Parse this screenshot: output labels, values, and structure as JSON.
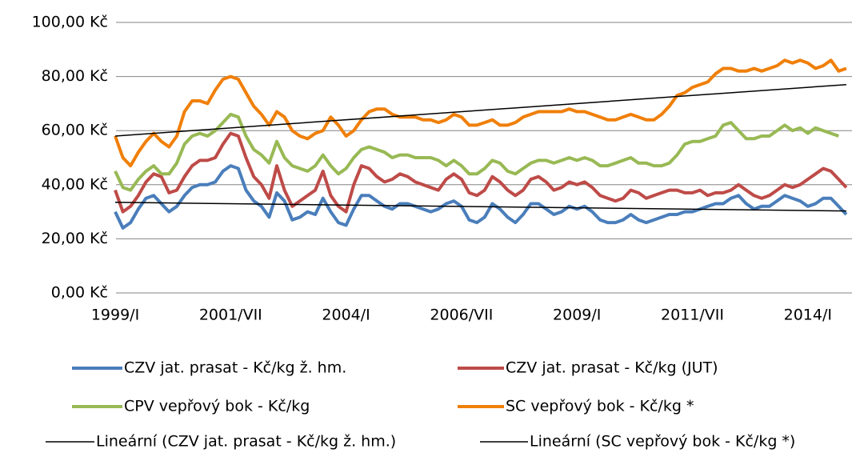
{
  "chart_data": {
    "type": "line",
    "categories": [
      "1999/I",
      null,
      null,
      null,
      null,
      null,
      null,
      null,
      null,
      null,
      null,
      null,
      null,
      null,
      null,
      "2001/VII",
      null,
      null,
      null,
      null,
      null,
      null,
      null,
      null,
      null,
      null,
      null,
      null,
      null,
      null,
      "2004/I",
      null,
      null,
      null,
      null,
      null,
      null,
      null,
      null,
      null,
      null,
      null,
      null,
      null,
      null,
      "2006/VII",
      null,
      null,
      null,
      null,
      null,
      null,
      null,
      null,
      null,
      null,
      null,
      null,
      null,
      null,
      "2009/I",
      null,
      null,
      null,
      null,
      null,
      null,
      null,
      null,
      null,
      null,
      null,
      null,
      null,
      null,
      "2011/VII",
      null,
      null,
      null,
      null,
      null,
      null,
      null,
      null,
      null,
      null,
      null,
      null,
      null,
      null,
      "2014/I",
      null,
      null,
      null,
      null,
      null
    ],
    "ylim": [
      0,
      100
    ],
    "yticks": [
      {
        "value": 0,
        "label": "0,00 Kč"
      },
      {
        "value": 20,
        "label": "20,00 Kč"
      },
      {
        "value": 40,
        "label": "40,00 Kč"
      },
      {
        "value": 60,
        "label": "60,00 Kč"
      },
      {
        "value": 80,
        "label": "80,00 Kč"
      },
      {
        "value": 100,
        "label": "100,00 Kč"
      }
    ],
    "grid": true,
    "series": [
      {
        "name": "CZV jat. prasat - Kč/kg ž. hm.",
        "color": "#4a7ebb",
        "values": [
          30,
          24,
          26,
          31,
          35,
          36,
          33,
          30,
          32,
          36,
          39,
          40,
          40,
          41,
          45,
          47,
          46,
          38,
          34,
          32,
          28,
          37,
          34,
          27,
          28,
          30,
          29,
          35,
          30,
          26,
          25,
          31,
          36,
          36,
          34,
          32,
          31,
          33,
          33,
          32,
          31,
          30,
          31,
          33,
          34,
          32,
          27,
          26,
          28,
          33,
          31,
          28,
          26,
          29,
          33,
          33,
          31,
          29,
          30,
          32,
          31,
          32,
          30,
          27,
          26,
          26,
          27,
          29,
          27,
          26,
          27,
          28,
          29,
          29,
          30,
          30,
          31,
          32,
          33,
          33,
          35,
          36,
          33,
          31,
          32,
          32,
          34,
          36,
          35,
          34,
          32,
          33,
          35,
          35,
          32,
          29
        ]
      },
      {
        "name": "CZV jat. prasat - Kč/kg (JUT)",
        "color": "#be4b48",
        "values": [
          38,
          30,
          32,
          36,
          41,
          44,
          43,
          37,
          38,
          43,
          47,
          49,
          49,
          50,
          55,
          59,
          58,
          50,
          43,
          40,
          35,
          47,
          38,
          32,
          34,
          36,
          38,
          45,
          36,
          32,
          30,
          40,
          47,
          46,
          43,
          41,
          42,
          44,
          43,
          41,
          40,
          39,
          38,
          42,
          44,
          42,
          37,
          36,
          38,
          43,
          41,
          38,
          36,
          38,
          42,
          43,
          41,
          38,
          39,
          41,
          40,
          41,
          39,
          36,
          35,
          34,
          35,
          38,
          37,
          35,
          36,
          37,
          38,
          38,
          37,
          37,
          38,
          36,
          37,
          37,
          38,
          40,
          38,
          36,
          35,
          36,
          38,
          40,
          39,
          40,
          42,
          44,
          46,
          45,
          42,
          39
        ]
      },
      {
        "name": "CPV vepřový bok - Kč/kg",
        "color": "#98b954",
        "values": [
          45,
          39,
          38,
          42,
          45,
          47,
          44,
          44,
          48,
          55,
          58,
          59,
          58,
          60,
          63,
          66,
          65,
          58,
          53,
          51,
          48,
          56,
          50,
          47,
          46,
          45,
          47,
          51,
          47,
          44,
          46,
          50,
          53,
          54,
          53,
          52,
          50,
          51,
          51,
          50,
          50,
          50,
          49,
          47,
          49,
          47,
          44,
          44,
          46,
          49,
          48,
          45,
          44,
          46,
          48,
          49,
          49,
          48,
          49,
          50,
          49,
          50,
          49,
          47,
          47,
          48,
          49,
          50,
          48,
          48,
          47,
          47,
          48,
          51,
          55,
          56,
          56,
          57,
          58,
          62,
          63,
          60,
          57,
          57,
          58,
          58,
          60,
          62,
          60,
          61,
          59,
          61,
          60,
          59,
          58,
          null
        ]
      },
      {
        "name": "SC vepřový bok - Kč/kg *",
        "color": "#f07f09",
        "values": [
          58,
          50,
          47,
          52,
          56,
          59,
          56,
          54,
          58,
          67,
          71,
          71,
          70,
          75,
          79,
          80,
          79,
          74,
          69,
          66,
          62,
          67,
          65,
          60,
          58,
          57,
          59,
          60,
          65,
          62,
          58,
          60,
          64,
          67,
          68,
          68,
          66,
          65,
          65,
          65,
          64,
          64,
          63,
          64,
          66,
          65,
          62,
          62,
          63,
          64,
          62,
          62,
          63,
          65,
          66,
          67,
          67,
          67,
          67,
          68,
          67,
          67,
          66,
          65,
          64,
          64,
          65,
          66,
          65,
          64,
          64,
          66,
          69,
          73,
          74,
          76,
          77,
          78,
          81,
          83,
          83,
          82,
          82,
          83,
          82,
          83,
          84,
          86,
          85,
          86,
          85,
          83,
          84,
          86,
          82,
          83
        ]
      }
    ],
    "trendlines": [
      {
        "name": "Lineární (CZV jat. prasat - Kč/kg ž. hm.)",
        "color": "#000000",
        "start": 33.5,
        "end": 30.3
      },
      {
        "name": "Lineární (SC vepřový bok - Kč/kg *)",
        "color": "#000000",
        "start": 58,
        "end": 77
      }
    ]
  }
}
